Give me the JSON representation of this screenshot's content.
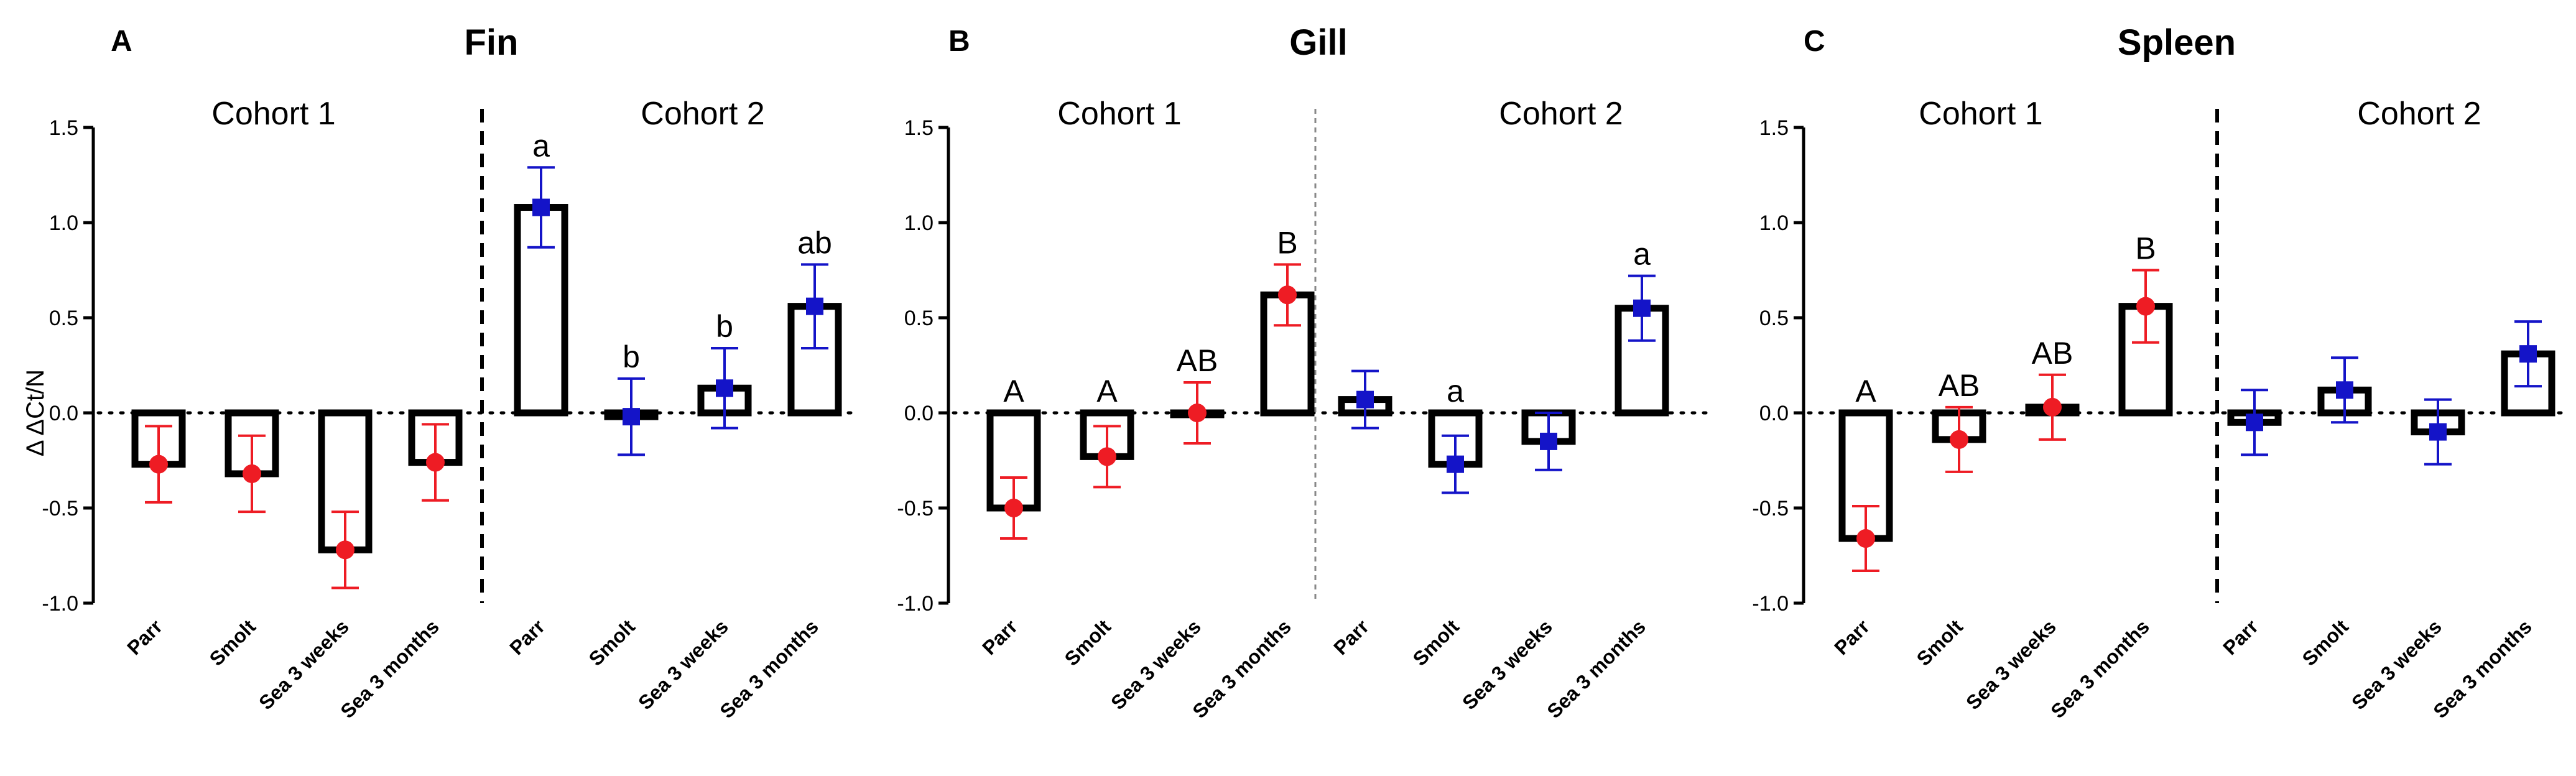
{
  "chart_data": [
    {
      "type": "bar",
      "panel": "A",
      "title": "Fin",
      "ylabel": "Δ ΔCt/N",
      "ylim": [
        -1.0,
        1.5
      ],
      "yticks": [
        -1.0,
        -0.5,
        0.0,
        0.5,
        1.0,
        1.5
      ],
      "divider": "dashed",
      "categories": [
        "Parr",
        "Smolt",
        "Sea 3 weeks",
        "Sea 3 months"
      ],
      "series": [
        {
          "name": "Cohort 1",
          "color": "#ee1c24",
          "marker": "circle",
          "values": [
            -0.27,
            -0.32,
            -0.72,
            -0.26
          ],
          "errors": [
            0.2,
            0.2,
            0.2,
            0.2
          ],
          "labels": [
            "",
            "",
            "",
            ""
          ]
        },
        {
          "name": "Cohort 2",
          "color": "#1414c8",
          "marker": "square",
          "values": [
            1.08,
            -0.02,
            0.13,
            0.56
          ],
          "errors": [
            0.21,
            0.2,
            0.21,
            0.22
          ],
          "labels": [
            "a",
            "b",
            "b",
            "ab"
          ]
        }
      ]
    },
    {
      "type": "bar",
      "panel": "B",
      "title": "Gill",
      "ylabel": "",
      "ylim": [
        -1.0,
        1.5
      ],
      "yticks": [
        -1.0,
        -0.5,
        0.0,
        0.5,
        1.0,
        1.5
      ],
      "divider": "dotted",
      "categories": [
        "Parr",
        "Smolt",
        "Sea 3 weeks",
        "Sea 3 months"
      ],
      "series": [
        {
          "name": "Cohort 1",
          "color": "#ee1c24",
          "marker": "circle",
          "values": [
            -0.5,
            -0.23,
            0.0,
            0.62
          ],
          "errors": [
            0.16,
            0.16,
            0.16,
            0.16
          ],
          "labels": [
            "A",
            "A",
            "AB",
            "B"
          ]
        },
        {
          "name": "Cohort 2",
          "color": "#1414c8",
          "marker": "square",
          "values": [
            0.07,
            -0.27,
            -0.15,
            0.55
          ],
          "errors": [
            0.15,
            0.15,
            0.15,
            0.17
          ],
          "labels": [
            "",
            "a",
            "",
            "a"
          ]
        }
      ]
    },
    {
      "type": "bar",
      "panel": "C",
      "title": "Spleen",
      "ylabel": "",
      "ylim": [
        -1.0,
        1.5
      ],
      "yticks": [
        -1.0,
        -0.5,
        0.0,
        0.5,
        1.0,
        1.5
      ],
      "divider": "dashed",
      "categories": [
        "Parr",
        "Smolt",
        "Sea 3 weeks",
        "Sea 3 months"
      ],
      "series": [
        {
          "name": "Cohort 1",
          "color": "#ee1c24",
          "marker": "circle",
          "values": [
            -0.66,
            -0.14,
            0.03,
            0.56
          ],
          "errors": [
            0.17,
            0.17,
            0.17,
            0.19
          ],
          "labels": [
            "A",
            "AB",
            "AB",
            "B"
          ]
        },
        {
          "name": "Cohort 2",
          "color": "#1414c8",
          "marker": "square",
          "values": [
            -0.05,
            0.12,
            -0.1,
            0.31
          ],
          "errors": [
            0.17,
            0.17,
            0.17,
            0.17
          ],
          "labels": [
            "",
            "",
            "",
            ""
          ]
        }
      ]
    }
  ]
}
